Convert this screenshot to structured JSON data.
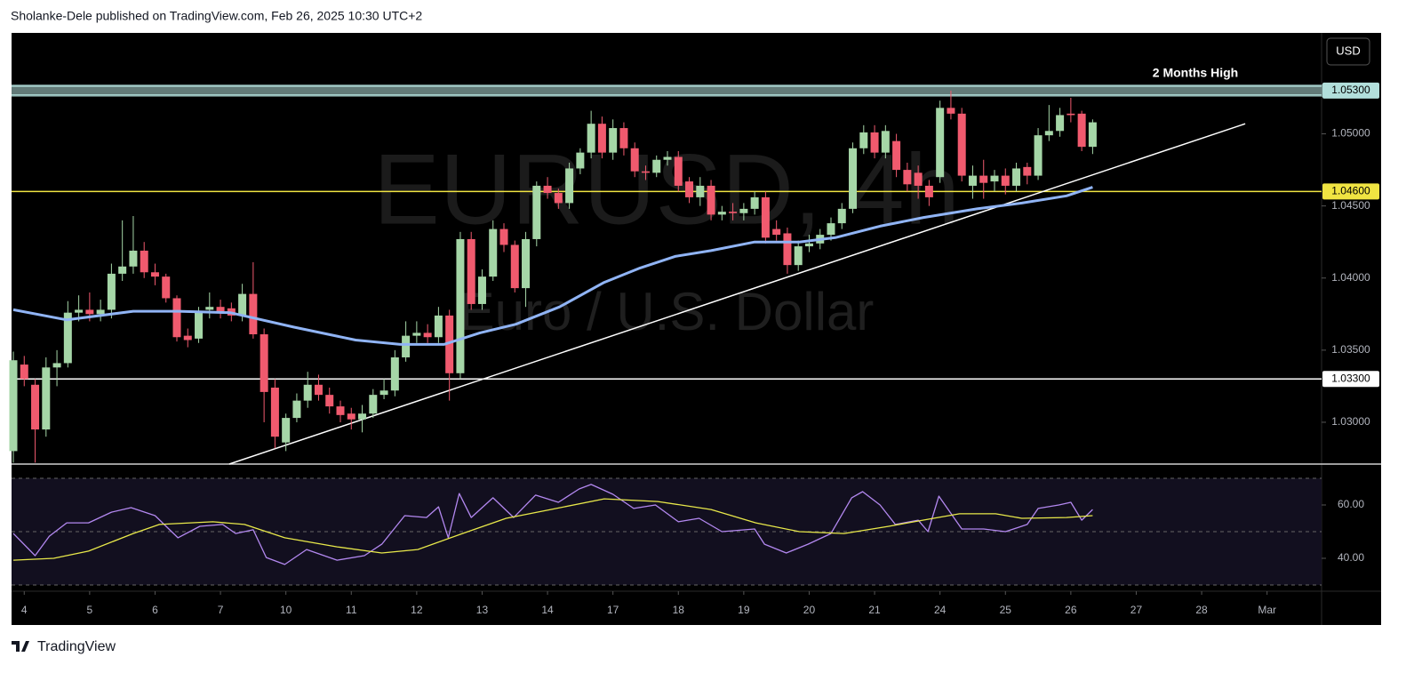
{
  "header": "Sholanke-Dele published on TradingView.com, Feb 26, 2025 10:30 UTC+2",
  "currency": "USD",
  "footer": "TradingView",
  "chart_data": [
    {
      "type": "candlestick",
      "title": "EURUSD, 4h",
      "subtitle": "Euro / U.S. Dollar",
      "up_color": "#a5d6a7",
      "down_color": "#f05a6e",
      "open": [
        1.028,
        1.034,
        1.0326,
        1.0295,
        1.0338,
        1.0341,
        1.0376,
        1.0378,
        1.0375,
        1.0378,
        1.0403,
        1.0408,
        1.0419,
        1.0404,
        1.0401,
        1.0386,
        1.036,
        1.0358,
        1.0378,
        1.038,
        1.0379,
        1.0374,
        1.0389,
        1.0361,
        1.0324,
        1.0286,
        1.0303,
        1.0315,
        1.0326,
        1.0319,
        1.0311,
        1.0306,
        1.0302,
        1.0306,
        1.0319,
        1.0322,
        1.0345,
        1.036,
        1.0362,
        1.0359,
        1.0374,
        1.0334,
        1.0427,
        1.0382,
        1.0401,
        1.0434,
        1.0423,
        1.0393,
        1.0427,
        1.0464,
        1.0459,
        1.0452,
        1.0476,
        1.0487,
        1.0507,
        1.0487,
        1.0504,
        1.049,
        1.0474,
        1.0473,
        1.0482,
        1.0484,
        1.0467,
        1.0456,
        1.0464,
        1.0444,
        1.0446,
        1.0445,
        1.0448,
        1.0456,
        1.0434,
        1.0431,
        1.0409,
        1.0422,
        1.0424,
        1.043,
        1.0438,
        1.0448,
        1.049,
        1.0501,
        1.0487,
        1.0495,
        1.0475,
        1.0473,
        1.0464,
        1.047,
        1.0518,
        1.0514,
        1.0464,
        1.0471,
        1.0467,
        1.0471,
        1.0464,
        1.0477,
        1.0471,
        1.0499,
        1.0502,
        1.0514,
        1.0514,
        1.0491
      ],
      "high": [
        1.0349,
        1.0346,
        1.033,
        1.0345,
        1.035,
        1.0384,
        1.0388,
        1.039,
        1.0385,
        1.041,
        1.044,
        1.0443,
        1.0425,
        1.041,
        1.0403,
        1.0388,
        1.0365,
        1.038,
        1.039,
        1.0385,
        1.0383,
        1.0396,
        1.0411,
        1.0365,
        1.033,
        1.0306,
        1.032,
        1.0335,
        1.0333,
        1.0324,
        1.0315,
        1.031,
        1.0312,
        1.0323,
        1.033,
        1.035,
        1.037,
        1.037,
        1.0368,
        1.038,
        1.0378,
        1.0432,
        1.0432,
        1.0406,
        1.044,
        1.0438,
        1.0426,
        1.0432,
        1.0467,
        1.047,
        1.0462,
        1.048,
        1.049,
        1.0516,
        1.0512,
        1.051,
        1.0508,
        1.0494,
        1.0478,
        1.0485,
        1.0488,
        1.0488,
        1.047,
        1.047,
        1.0468,
        1.045,
        1.0452,
        1.0452,
        1.046,
        1.046,
        1.044,
        1.0435,
        1.0426,
        1.043,
        1.0434,
        1.0442,
        1.0452,
        1.0494,
        1.0506,
        1.0506,
        1.0506,
        1.05,
        1.048,
        1.0478,
        1.0468,
        1.0523,
        1.053,
        1.0518,
        1.0478,
        1.0482,
        1.0475,
        1.0476,
        1.048,
        1.048,
        1.0504,
        1.052,
        1.0518,
        1.0525,
        1.0516,
        1.051
      ],
      "low": [
        1.0272,
        1.0325,
        1.0272,
        1.029,
        1.0325,
        1.0338,
        1.037,
        1.037,
        1.037,
        1.0372,
        1.0398,
        1.0403,
        1.04,
        1.0395,
        1.0383,
        1.0356,
        1.0352,
        1.0355,
        1.0372,
        1.0372,
        1.037,
        1.037,
        1.0358,
        1.03,
        1.0282,
        1.028,
        1.03,
        1.031,
        1.0315,
        1.0306,
        1.03,
        1.0295,
        1.0293,
        1.0303,
        1.0316,
        1.0318,
        1.0342,
        1.0355,
        1.0355,
        1.0355,
        1.0315,
        1.033,
        1.0378,
        1.0378,
        1.0398,
        1.0418,
        1.039,
        1.038,
        1.0422,
        1.0455,
        1.0448,
        1.0448,
        1.0472,
        1.0483,
        1.0483,
        1.0482,
        1.0485,
        1.047,
        1.0468,
        1.047,
        1.0478,
        1.046,
        1.0452,
        1.045,
        1.044,
        1.044,
        1.044,
        1.044,
        1.0444,
        1.0424,
        1.0426,
        1.0403,
        1.0405,
        1.0418,
        1.042,
        1.0426,
        1.0434,
        1.0445,
        1.0486,
        1.0483,
        1.0483,
        1.047,
        1.046,
        1.0455,
        1.045,
        1.0466,
        1.051,
        1.0467,
        1.0455,
        1.0455,
        1.046,
        1.0458,
        1.046,
        1.0465,
        1.0468,
        1.0495,
        1.0498,
        1.0508,
        1.0488,
        1.0486
      ],
      "close": [
        1.0343,
        1.033,
        1.0295,
        1.0338,
        1.0341,
        1.0376,
        1.0378,
        1.0375,
        1.0378,
        1.0403,
        1.0408,
        1.0419,
        1.0404,
        1.0401,
        1.0386,
        1.0359,
        1.0357,
        1.0377,
        1.038,
        1.0377,
        1.0374,
        1.0389,
        1.0361,
        1.0321,
        1.029,
        1.0303,
        1.0315,
        1.0326,
        1.0319,
        1.0311,
        1.0305,
        1.0302,
        1.0306,
        1.0319,
        1.0322,
        1.0345,
        1.036,
        1.0362,
        1.0359,
        1.0374,
        1.0334,
        1.0427,
        1.0382,
        1.0401,
        1.0434,
        1.0423,
        1.0393,
        1.0427,
        1.0464,
        1.0459,
        1.0452,
        1.0476,
        1.0487,
        1.0507,
        1.0487,
        1.0504,
        1.049,
        1.0474,
        1.0473,
        1.0482,
        1.0484,
        1.0464,
        1.0456,
        1.0464,
        1.0444,
        1.0446,
        1.0445,
        1.0448,
        1.0456,
        1.0428,
        1.043,
        1.0409,
        1.0422,
        1.0424,
        1.043,
        1.0438,
        1.0448,
        1.049,
        1.0501,
        1.0487,
        1.0502,
        1.0475,
        1.0465,
        1.0464,
        1.0456,
        1.0518,
        1.0514,
        1.0471,
        1.0471,
        1.0466,
        1.0471,
        1.0464,
        1.0476,
        1.0471,
        1.0499,
        1.0502,
        1.0513,
        1.0513,
        1.0491,
        1.0508
      ],
      "overlay": {
        "color": "#90b4f5",
        "x": [
          0,
          4.9,
          11,
          15.1,
          19.9,
          25.7,
          31.4,
          35.5,
          39.5,
          42.8,
          46.1,
          50.1,
          54.2,
          57.5,
          60.7,
          64,
          68,
          72.1,
          75.4,
          79.5,
          83.5,
          88.4,
          92.5,
          96.6,
          99
        ],
        "values": [
          1.0378,
          1.0371,
          1.0377,
          1.0377,
          1.0376,
          1.0366,
          1.0357,
          1.0354,
          1.0354,
          1.0362,
          1.0368,
          1.038,
          1.0397,
          1.0407,
          1.0415,
          1.0419,
          1.0425,
          1.0425,
          1.0428,
          1.0436,
          1.0442,
          1.0448,
          1.0452,
          1.0457,
          1.0463
        ]
      },
      "trendline": {
        "color": "#ffffff",
        "x": [
          19.8,
          113
        ],
        "y": [
          1.0271,
          1.0507
        ]
      },
      "levels": [
        {
          "value": 1.053,
          "label": "1.05300",
          "color": "#b2dfdb"
        },
        {
          "value": 1.046,
          "label": "1.04600",
          "color": "#f0e442"
        },
        {
          "value": 1.033,
          "label": "1.03300",
          "color": "#ffffff"
        }
      ],
      "annotation": "2 Months High",
      "xlim": [
        0,
        120
      ],
      "xticks": [
        {
          "value": 1,
          "label": "4"
        },
        {
          "value": 7,
          "label": "5"
        },
        {
          "value": 13,
          "label": "6"
        },
        {
          "value": 19,
          "label": "7"
        },
        {
          "value": 25,
          "label": "10"
        },
        {
          "value": 31,
          "label": "11"
        },
        {
          "value": 37,
          "label": "12"
        },
        {
          "value": 43,
          "label": "13"
        },
        {
          "value": 49,
          "label": "14"
        },
        {
          "value": 55,
          "label": "17"
        },
        {
          "value": 61,
          "label": "18"
        },
        {
          "value": 67,
          "label": "19"
        },
        {
          "value": 73,
          "label": "20"
        },
        {
          "value": 79,
          "label": "21"
        },
        {
          "value": 85,
          "label": "24"
        },
        {
          "value": 91,
          "label": "25"
        },
        {
          "value": 97,
          "label": "26"
        },
        {
          "value": 103,
          "label": "27"
        },
        {
          "value": 109,
          "label": "28"
        },
        {
          "value": 115,
          "label": "Mar"
        }
      ],
      "ylim": [
        1.0271,
        1.057
      ],
      "yticks": [
        {
          "value": 1.03,
          "label": "1.03000"
        },
        {
          "value": 1.035,
          "label": "1.03500"
        },
        {
          "value": 1.04,
          "label": "1.04000"
        },
        {
          "value": 1.045,
          "label": "1.04500"
        },
        {
          "value": 1.05,
          "label": "1.05000"
        }
      ]
    },
    {
      "type": "line",
      "series": [
        {
          "color": "#b388f0",
          "x": [
            0,
            2.0,
            3.3,
            4.9,
            6.9,
            9.0,
            10.8,
            13.0,
            15.1,
            17.1,
            19.2,
            20.4,
            22.0,
            23.2,
            24.9,
            26.9,
            29.7,
            32.2,
            33.8,
            35.9,
            37.9,
            39.0,
            39.9,
            40.9,
            42.0,
            44.0,
            45.9,
            47.9,
            50.0,
            51.9,
            53.0,
            55.0,
            56.9,
            58.9,
            61.0,
            62.9,
            65.0,
            68.0,
            68.9,
            70.9,
            72.9,
            75.0,
            76.9,
            77.9,
            79.5,
            80.9,
            83.0,
            83.9,
            84.9,
            87.0,
            89.0,
            91.0,
            93.0,
            94.0,
            95.9,
            97.0,
            98.0,
            99.0
          ],
          "values": [
            49.3,
            41,
            48.3,
            53.3,
            53.3,
            57.3,
            59,
            56,
            47.7,
            52,
            52.7,
            49.3,
            50.7,
            40.3,
            37.7,
            43.3,
            39.3,
            41,
            45.3,
            56,
            55.3,
            59.3,
            47.7,
            64.3,
            55.3,
            62.7,
            55.3,
            63.7,
            61,
            66,
            67.7,
            64,
            58.7,
            60,
            53.7,
            55,
            50,
            51,
            45.3,
            42,
            45.3,
            49.3,
            62.7,
            65,
            60,
            52.7,
            54.3,
            50,
            63.3,
            51,
            51,
            50,
            52.7,
            58.7,
            60,
            61,
            54.3,
            58.3
          ]
        },
        {
          "color": "#e8e84a",
          "x": [
            0,
            3.7,
            6.9,
            11.0,
            13.4,
            18.3,
            21.2,
            24.9,
            29.7,
            33.8,
            37.1,
            41.2,
            45.2,
            49.3,
            54.2,
            59.1,
            64.0,
            68.1,
            72.1,
            76.2,
            80.3,
            84.4,
            86.8,
            90.1,
            92.5,
            96.6,
            99.0
          ],
          "values": [
            39.3,
            40,
            42.7,
            49.3,
            52.7,
            53.7,
            52.7,
            47.7,
            44.3,
            42,
            43.3,
            49.3,
            55,
            58.3,
            62.3,
            61.3,
            58.3,
            53.3,
            50,
            49.3,
            52,
            55,
            56.7,
            56.7,
            55,
            55.3,
            56
          ]
        }
      ],
      "guides": [
        30,
        50,
        70
      ],
      "band_color": "#120f1f",
      "xlim": [
        0,
        120
      ],
      "ylim": [
        30,
        70
      ],
      "yticks": [
        {
          "value": 40,
          "label": "40.00"
        },
        {
          "value": 60,
          "label": "60.00"
        }
      ]
    }
  ]
}
